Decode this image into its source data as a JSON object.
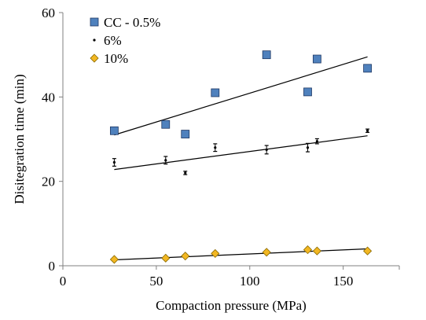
{
  "chart_data": {
    "type": "scatter",
    "title": "",
    "xlabel": "Compaction pressure (MPa)",
    "ylabel": "Disitegration time (min)",
    "xlim": [
      0,
      180
    ],
    "ylim": [
      0,
      60
    ],
    "xticks": [
      0,
      50,
      100,
      150
    ],
    "yticks": [
      0,
      20,
      40,
      60
    ],
    "grid": false,
    "legend_position": "top-left",
    "series": [
      {
        "name": "CC - 0.5%",
        "marker": "square",
        "color": "#4F81BD",
        "edge": "#1F3864",
        "x": [
          27.5,
          55,
          65.5,
          81.5,
          109,
          131,
          136,
          163
        ],
        "y": [
          32.0,
          33.5,
          31.2,
          41.0,
          50.0,
          41.2,
          49.0,
          46.8
        ],
        "trendline": {
          "x": [
            27.5,
            163
          ],
          "y": [
            31.0,
            49.5
          ]
        }
      },
      {
        "name": "6%",
        "marker": "dot",
        "color": "#000000",
        "x": [
          27.5,
          55,
          65.5,
          81.5,
          109,
          131,
          136,
          163
        ],
        "y": [
          24.5,
          25.0,
          22.0,
          28.0,
          27.5,
          28.0,
          29.5,
          32.0
        ],
        "error": [
          0.9,
          0.9,
          0.4,
          0.9,
          1.0,
          1.0,
          0.6,
          0.4
        ],
        "trendline": {
          "x": [
            27.5,
            163
          ],
          "y": [
            22.8,
            30.8
          ]
        }
      },
      {
        "name": "10%",
        "marker": "diamond",
        "color": "#F2B722",
        "edge": "#8A6A00",
        "x": [
          27.5,
          55,
          65.5,
          81.5,
          109,
          131,
          136,
          163
        ],
        "y": [
          1.5,
          1.8,
          2.3,
          2.9,
          3.2,
          3.8,
          3.5,
          3.5
        ],
        "trendline": {
          "x": [
            27.5,
            163
          ],
          "y": [
            1.4,
            4.0
          ]
        }
      }
    ]
  }
}
